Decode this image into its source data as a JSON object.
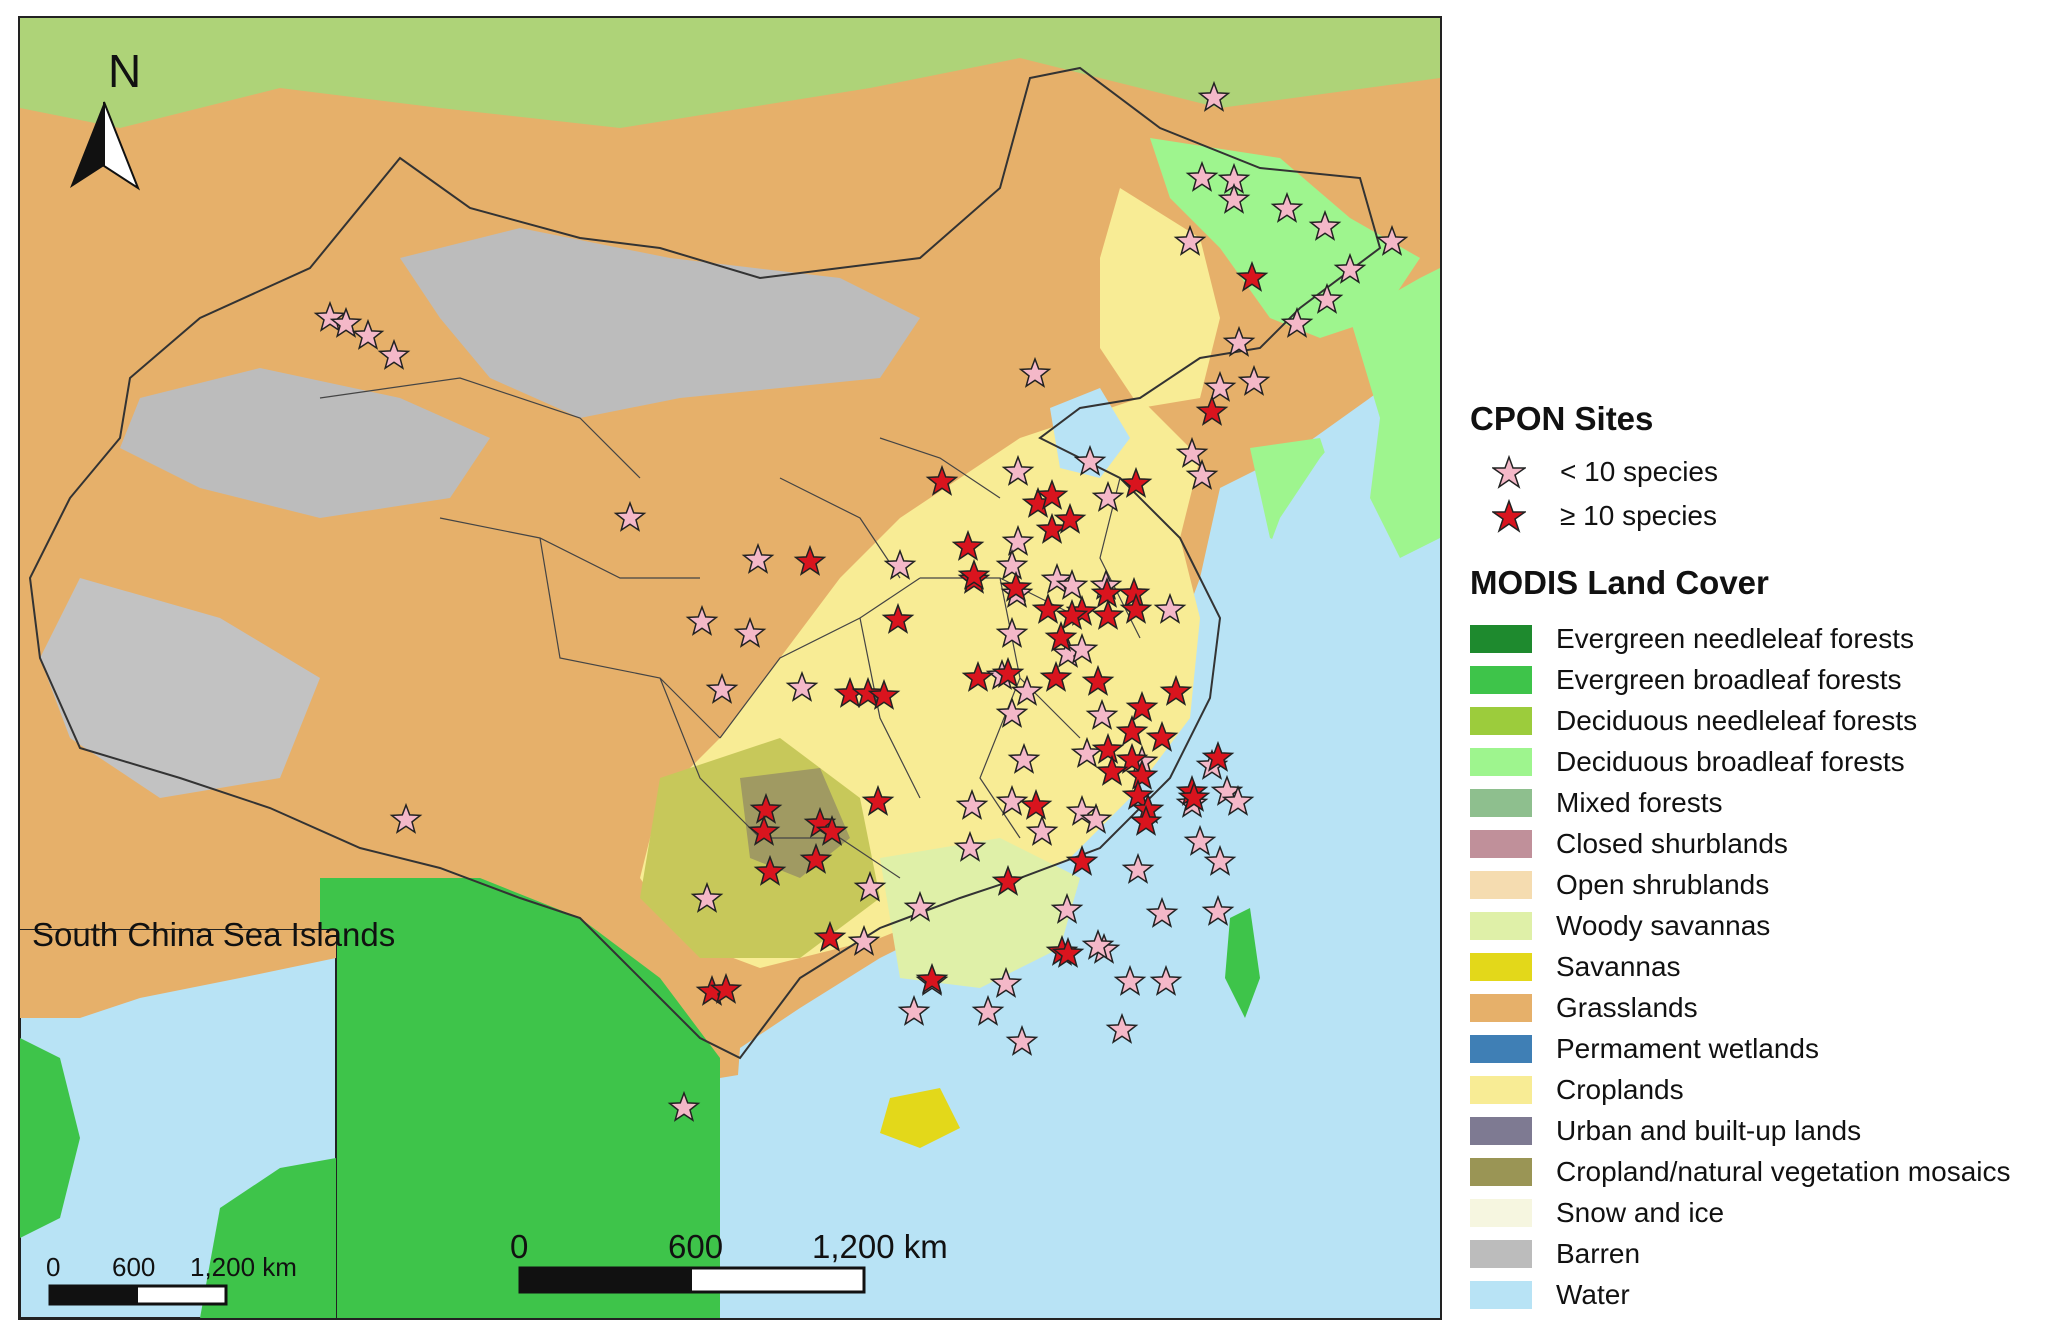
{
  "map": {
    "north_label": "N",
    "inset_title": "South China Sea Islands",
    "scale": {
      "labels": [
        "0",
        "600",
        "1,200 km"
      ]
    },
    "inset_scale": {
      "labels": [
        "0",
        "600",
        "1,200 km"
      ]
    }
  },
  "legend": {
    "sites_title": "CPON Sites",
    "sites": [
      {
        "label": "< 10 species",
        "color": "#f4b8c8"
      },
      {
        "label": "≥ 10 species",
        "color": "#d9141e"
      }
    ],
    "landcover_title": "MODIS Land Cover",
    "classes": [
      {
        "label": "Evergreen needleleaf forests",
        "color": "#1e8a2e"
      },
      {
        "label": "Evergreen broadleaf forests",
        "color": "#3ec44a"
      },
      {
        "label": "Deciduous needleleaf forests",
        "color": "#9ccc3c"
      },
      {
        "label": "Deciduous broadleaf forests",
        "color": "#9ef58e"
      },
      {
        "label": "Mixed forests",
        "color": "#8ebf8e"
      },
      {
        "label": "Closed shurblands",
        "color": "#c0909a"
      },
      {
        "label": "Open shrublands",
        "color": "#f5dcb0"
      },
      {
        "label": "Woody savannas",
        "color": "#dff0a8"
      },
      {
        "label": "Savannas",
        "color": "#e3d81a"
      },
      {
        "label": "Grasslands",
        "color": "#e6b06a"
      },
      {
        "label": "Permament wetlands",
        "color": "#3f7fb5"
      },
      {
        "label": "Croplands",
        "color": "#f8ec95"
      },
      {
        "label": "Urban and built-up lands",
        "color": "#7e7a92"
      },
      {
        "label": "Cropland/natural vegetation mosaics",
        "color": "#9a9555"
      },
      {
        "label": "Snow and ice",
        "color": "#f6f6e0"
      },
      {
        "label": "Barren",
        "color": "#bcbcbc"
      },
      {
        "label": "Water",
        "color": "#b8e3f5"
      }
    ]
  }
}
